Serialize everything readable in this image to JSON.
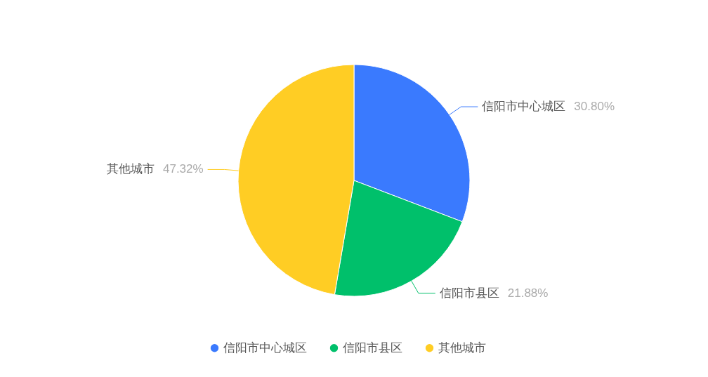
{
  "chart_data": {
    "type": "pie",
    "categories": [
      "信阳市中心城区",
      "信阳市县区",
      "其他城市"
    ],
    "values": [
      30.8,
      21.88,
      47.32
    ],
    "value_labels": [
      "30.80%",
      "21.88%",
      "47.32%"
    ],
    "colors": [
      "#3a7afe",
      "#00c06b",
      "#ffcd24"
    ],
    "legend": "bottom"
  }
}
